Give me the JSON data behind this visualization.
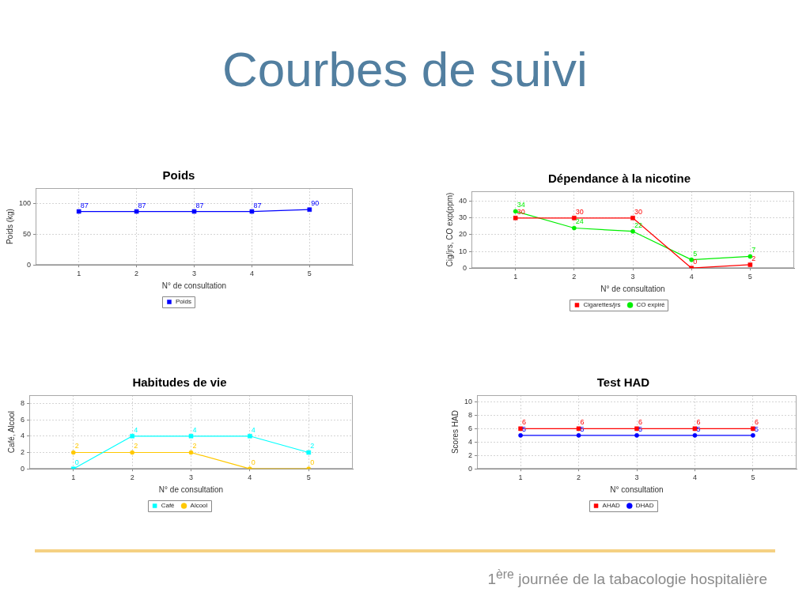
{
  "chart_data": [
    {
      "type": "other",
      "title": "Courbes de suivi"
    },
    {
      "type": "line",
      "title": "Poids",
      "xlabel": "N° de consultation",
      "ylabel": "Poids (kg)",
      "x": [
        1,
        2,
        3,
        4,
        5
      ],
      "xlim": [
        0.25,
        5.75
      ],
      "xticks": [
        1,
        2,
        3,
        4,
        5
      ],
      "ylim": [
        0,
        125
      ],
      "yticks": [
        0,
        50,
        100
      ],
      "grid": true,
      "legend": "bottom",
      "data_labels": true,
      "series": [
        {
          "name": "Poids",
          "color": "#0000ff",
          "marker": "square",
          "values": [
            87,
            87,
            87,
            87,
            90
          ]
        }
      ]
    },
    {
      "type": "line",
      "title": "Dépendance à la nicotine",
      "xlabel": "N° de consultation",
      "ylabel": "Cig/jrs, CO exp(ppm)",
      "x": [
        1,
        2,
        3,
        4,
        5
      ],
      "xlim": [
        0.25,
        5.75
      ],
      "xticks": [
        1,
        2,
        3,
        4,
        5
      ],
      "ylim": [
        0,
        46
      ],
      "yticks": [
        0,
        10,
        20,
        30,
        40
      ],
      "grid": true,
      "legend": "bottom",
      "data_labels": true,
      "series": [
        {
          "name": "Cigarettes/jrs",
          "color": "#ff0000",
          "marker": "square",
          "values": [
            30,
            30,
            30,
            0,
            2
          ]
        },
        {
          "name": "CO expiré",
          "color": "#00ee00",
          "marker": "circle",
          "values": [
            34,
            24,
            22,
            5,
            7
          ]
        }
      ]
    },
    {
      "type": "line",
      "title": "Habitudes de vie",
      "xlabel": "N° de consultation",
      "ylabel": "Café, Alcool",
      "x": [
        1,
        2,
        3,
        4,
        5
      ],
      "xlim": [
        0.25,
        5.75
      ],
      "xticks": [
        1,
        2,
        3,
        4,
        5
      ],
      "ylim": [
        0,
        9
      ],
      "yticks": [
        0,
        2,
        4,
        6,
        8
      ],
      "grid": true,
      "legend": "bottom",
      "data_labels": true,
      "series": [
        {
          "name": "Café",
          "color": "#00ffff",
          "marker": "square",
          "values": [
            0,
            4,
            4,
            4,
            2
          ]
        },
        {
          "name": "Alcool",
          "color": "#ffc800",
          "marker": "circle",
          "values": [
            2,
            2,
            2,
            0,
            0
          ]
        }
      ]
    },
    {
      "type": "line",
      "title": "Test HAD",
      "xlabel": "N° consultation",
      "ylabel": "Scores HAD",
      "x": [
        1,
        2,
        3,
        4,
        5
      ],
      "xlim": [
        0.25,
        5.75
      ],
      "xticks": [
        1,
        2,
        3,
        4,
        5
      ],
      "ylim": [
        0,
        11
      ],
      "yticks": [
        0,
        2,
        4,
        6,
        8,
        10
      ],
      "grid": true,
      "legend": "bottom",
      "data_labels": true,
      "series": [
        {
          "name": "AHAD",
          "color": "#ff0000",
          "marker": "square",
          "values": [
            6,
            6,
            6,
            6,
            6
          ]
        },
        {
          "name": "DHAD",
          "color": "#0000ff",
          "marker": "circle",
          "values": [
            5,
            5,
            5,
            5,
            5
          ]
        }
      ]
    },
    {
      "type": "other",
      "annotations": [
        "1$^{ère}$ journée de la tabacologie hospitalière"
      ]
    }
  ]
}
